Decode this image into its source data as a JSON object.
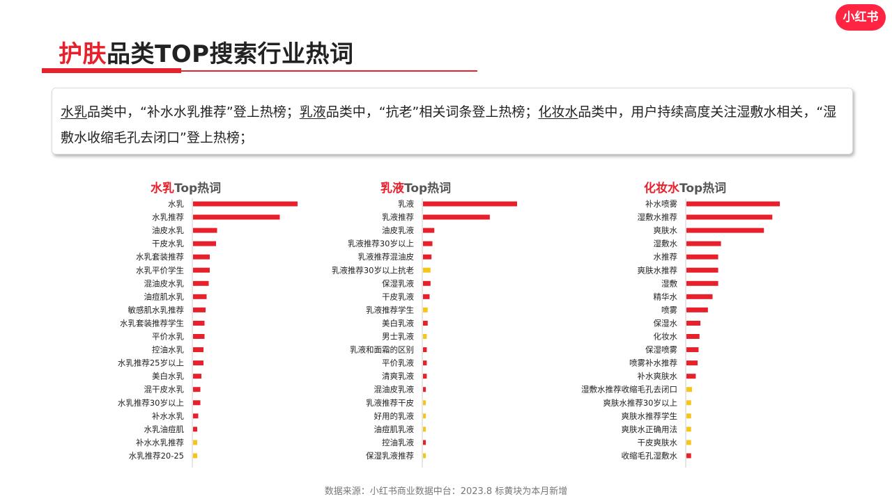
{
  "brand": {
    "logo_text": "小红书",
    "accent_color": "#e8202b",
    "new_color": "#f5c518"
  },
  "title": {
    "accent": "护肤",
    "rest": "品类TOP搜索行业热词"
  },
  "summary": {
    "p1": "水乳",
    "p2": "品类中，“补水水乳推荐”登上热榜；",
    "p3": "乳液",
    "p4": "品类中，“抗老”相关词条登上热榜；",
    "p5": "化妆水",
    "p6": "品类中，用户持续高度关注湿敷水相关，“湿敷水收缩毛孔去闭口”登上热榜；"
  },
  "footer": "数据来源：小红书商业数据中台：2023.8 标黄块为本月新增",
  "chart_data": [
    {
      "type": "bar",
      "orientation": "horizontal",
      "title_accent": "水乳",
      "title_rest": "Top热词",
      "categories": [
        "水乳",
        "水乳推荐",
        "油皮水乳",
        "干皮水乳",
        "水乳套装推荐",
        "水乳平价学生",
        "混油皮水乳",
        "油痘肌水乳",
        "敏感肌水乳推荐",
        "水乳套装推荐学生",
        "平价水乳",
        "控油水乳",
        "水乳推荐25岁以上",
        "美白水乳",
        "混干皮水乳",
        "水乳推荐30岁以上",
        "补水水乳",
        "水乳油痘肌",
        "补水水乳推荐",
        "水乳推荐20-25"
      ],
      "values": [
        100,
        83,
        23,
        22,
        16,
        16,
        15,
        13,
        12,
        11,
        11,
        10,
        10,
        8,
        7,
        7,
        5,
        4,
        4,
        4
      ],
      "new": [
        false,
        false,
        false,
        false,
        false,
        false,
        false,
        false,
        false,
        false,
        false,
        false,
        false,
        false,
        false,
        false,
        false,
        false,
        true,
        true
      ]
    },
    {
      "type": "bar",
      "orientation": "horizontal",
      "title_accent": "乳液",
      "title_rest": "Top热词",
      "categories": [
        "乳液",
        "乳液推荐",
        "油皮乳液",
        "乳液推荐30岁以上",
        "乳液推荐混油皮",
        "乳液推荐30岁以上抗老",
        "保湿乳液",
        "干皮乳液",
        "乳液推荐学生",
        "美白乳液",
        "男士乳液",
        "乳液和面霜的区别",
        "平价乳液",
        "清爽乳液",
        "混油皮乳液",
        "乳液推荐干皮",
        "好用的乳液",
        "油痘肌乳液",
        "控油乳液",
        "保湿乳液推荐"
      ],
      "values": [
        100,
        71,
        12,
        10,
        9,
        8,
        8,
        7,
        5,
        5,
        4,
        4,
        4,
        4,
        3,
        3,
        3,
        3,
        3,
        3
      ],
      "new": [
        false,
        false,
        false,
        false,
        false,
        true,
        false,
        false,
        true,
        false,
        true,
        false,
        false,
        false,
        false,
        true,
        true,
        true,
        false,
        true
      ]
    },
    {
      "type": "bar",
      "orientation": "horizontal",
      "title_accent": "化妆水",
      "title_rest": "Top热词",
      "categories": [
        "补水喷雾",
        "湿敷水推荐",
        "爽肤水",
        "湿敷水",
        "水推荐",
        "爽肤水推荐",
        "湿敷",
        "精华水",
        "喷雾",
        "保湿水",
        "化妆水",
        "保湿喷雾",
        "喷雾补水推荐",
        "补水爽肤水",
        "湿敷水推荐收缩毛孔去闭口",
        "爽肤水推荐30岁以上",
        "爽肤水推荐学生",
        "爽肤水正确用法",
        "干皮爽肤水",
        "收缩毛孔湿敷水"
      ],
      "values": [
        100,
        92,
        83,
        37,
        34,
        34,
        34,
        28,
        23,
        15,
        14,
        13,
        12,
        10,
        6,
        5,
        5,
        5,
        5,
        5
      ],
      "new": [
        false,
        false,
        false,
        false,
        false,
        false,
        false,
        false,
        false,
        false,
        false,
        false,
        false,
        false,
        true,
        true,
        true,
        true,
        true,
        false
      ]
    }
  ]
}
